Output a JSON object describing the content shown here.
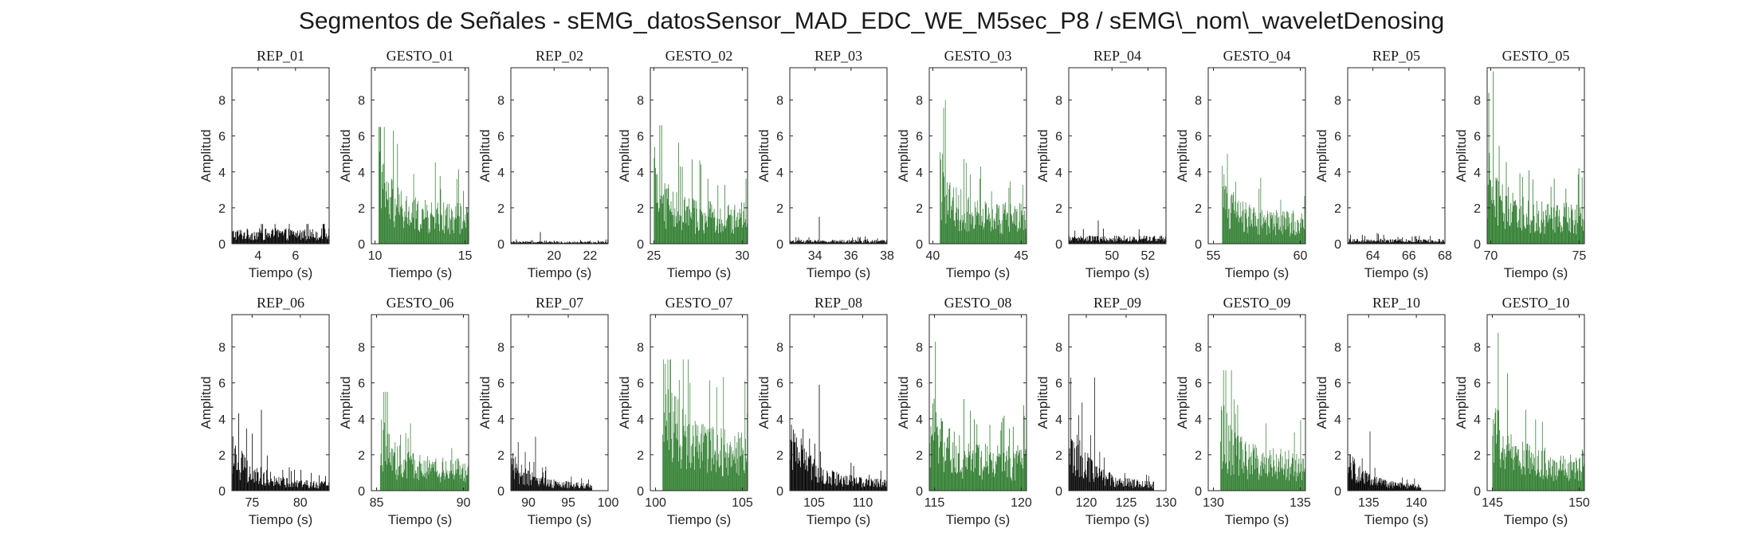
{
  "figure": {
    "title": "Segmentos de Señales - sEMG_datosSensor_MAD_EDC_WE_M5sec_P8 / sEMG\\_nom\\_waveletDenosing"
  },
  "colors": {
    "rep": "#000000",
    "gesto": "#2e7d2e",
    "axis": "#262626"
  },
  "chart_data": [
    {
      "type": "bar",
      "title": "REP_01",
      "xlabel": "Tiempo (s)",
      "ylabel": "Amplitud",
      "xlim": [
        2.6,
        7.8
      ],
      "ylim": [
        0,
        9.8
      ],
      "xticks": [
        4,
        6
      ],
      "yticks": [
        0,
        2,
        4,
        6,
        8
      ],
      "color": "rep",
      "style": "rep",
      "peak": 1.1,
      "typical": 0.75,
      "onset": 2.6,
      "end": 7.8
    },
    {
      "type": "bar",
      "title": "GESTO_01",
      "xlabel": "Tiempo (s)",
      "ylabel": "Amplitud",
      "xlim": [
        9.8,
        15.2
      ],
      "ylim": [
        0,
        9.8
      ],
      "xticks": [
        10,
        15
      ],
      "yticks": [
        0,
        2,
        4,
        6,
        8
      ],
      "color": "gesto",
      "style": "gesto",
      "peak": 6.5,
      "typical": 2.0,
      "onset": 10.2,
      "end": 15.2
    },
    {
      "type": "bar",
      "title": "REP_02",
      "xlabel": "Tiempo (s)",
      "ylabel": "Amplitud",
      "xlim": [
        17.6,
        23.0
      ],
      "ylim": [
        0,
        9.8
      ],
      "xticks": [
        20,
        22
      ],
      "yticks": [
        0,
        2,
        4,
        6,
        8
      ],
      "color": "rep",
      "style": "rep",
      "peak": 0.65,
      "typical": 0.12,
      "onset": 17.6,
      "end": 23.0
    },
    {
      "type": "bar",
      "title": "GESTO_02",
      "xlabel": "Tiempo (s)",
      "ylabel": "Amplitud",
      "xlim": [
        24.8,
        30.3
      ],
      "ylim": [
        0,
        9.8
      ],
      "xticks": [
        25,
        30
      ],
      "yticks": [
        0,
        2,
        4,
        6,
        8
      ],
      "color": "gesto",
      "style": "gesto",
      "peak": 6.6,
      "typical": 2.0,
      "onset": 25.0,
      "end": 30.3
    },
    {
      "type": "bar",
      "title": "REP_03",
      "xlabel": "Tiempo (s)",
      "ylabel": "Amplitud",
      "xlim": [
        32.6,
        38.0
      ],
      "ylim": [
        0,
        9.8
      ],
      "xticks": [
        34,
        36,
        38
      ],
      "yticks": [
        0,
        2,
        4,
        6,
        8
      ],
      "color": "rep",
      "style": "rep",
      "peak": 1.5,
      "typical": 0.2,
      "onset": 32.6,
      "end": 38.0
    },
    {
      "type": "bar",
      "title": "GESTO_03",
      "xlabel": "Tiempo (s)",
      "ylabel": "Amplitud",
      "xlim": [
        39.8,
        45.3
      ],
      "ylim": [
        0,
        9.8
      ],
      "xticks": [
        40,
        45
      ],
      "yticks": [
        0,
        2,
        4,
        6,
        8
      ],
      "color": "gesto",
      "style": "gesto",
      "peak": 8.0,
      "typical": 2.0,
      "onset": 40.4,
      "end": 45.3
    },
    {
      "type": "bar",
      "title": "REP_04",
      "xlabel": "Tiempo (s)",
      "ylabel": "Amplitud",
      "xlim": [
        47.6,
        53.0
      ],
      "ylim": [
        0,
        9.8
      ],
      "xticks": [
        50,
        52
      ],
      "yticks": [
        0,
        2,
        4,
        6,
        8
      ],
      "color": "rep",
      "style": "rep",
      "peak": 1.3,
      "typical": 0.4,
      "onset": 47.6,
      "end": 53.0
    },
    {
      "type": "bar",
      "title": "GESTO_04",
      "xlabel": "Tiempo (s)",
      "ylabel": "Amplitud",
      "xlim": [
        54.7,
        60.3
      ],
      "ylim": [
        0,
        9.8
      ],
      "xticks": [
        55,
        60
      ],
      "yticks": [
        0,
        2,
        4,
        6,
        8
      ],
      "color": "gesto",
      "style": "gesto",
      "peak": 5.0,
      "typical": 1.6,
      "onset": 55.5,
      "end": 60.3
    },
    {
      "type": "bar",
      "title": "REP_05",
      "xlabel": "Tiempo (s)",
      "ylabel": "Amplitud",
      "xlim": [
        62.6,
        68.0
      ],
      "ylim": [
        0,
        9.8
      ],
      "xticks": [
        64,
        66,
        68
      ],
      "yticks": [
        0,
        2,
        4,
        6,
        8
      ],
      "color": "rep",
      "style": "rep",
      "peak": 0.6,
      "typical": 0.25,
      "onset": 62.6,
      "end": 68.0
    },
    {
      "type": "bar",
      "title": "GESTO_05",
      "xlabel": "Tiempo (s)",
      "ylabel": "Amplitud",
      "xlim": [
        69.8,
        75.3
      ],
      "ylim": [
        0,
        9.8
      ],
      "xticks": [
        70,
        75
      ],
      "yticks": [
        0,
        2,
        4,
        6,
        8
      ],
      "color": "gesto",
      "style": "gesto",
      "peak": 9.6,
      "typical": 2.0,
      "onset": 69.8,
      "end": 75.3
    },
    {
      "type": "bar",
      "title": "REP_06",
      "xlabel": "Tiempo (s)",
      "ylabel": "Amplitud",
      "xlim": [
        72.9,
        83.0
      ],
      "ylim": [
        0,
        9.8
      ],
      "xticks": [
        75,
        80
      ],
      "yticks": [
        0,
        2,
        4,
        6,
        8
      ],
      "color": "rep",
      "style": "decay",
      "peak": 4.5,
      "typical": 0.4,
      "onset": 72.9,
      "end": 83.0
    },
    {
      "type": "bar",
      "title": "GESTO_06",
      "xlabel": "Tiempo (s)",
      "ylabel": "Amplitud",
      "xlim": [
        84.7,
        90.3
      ],
      "ylim": [
        0,
        9.8
      ],
      "xticks": [
        85,
        90
      ],
      "yticks": [
        0,
        2,
        4,
        6,
        8
      ],
      "color": "gesto",
      "style": "gesto",
      "peak": 5.5,
      "typical": 1.6,
      "onset": 85.2,
      "end": 90.3
    },
    {
      "type": "bar",
      "title": "REP_07",
      "xlabel": "Tiempo (s)",
      "ylabel": "Amplitud",
      "xlim": [
        87.8,
        100.0
      ],
      "ylim": [
        0,
        9.8
      ],
      "xticks": [
        90,
        95,
        100
      ],
      "yticks": [
        0,
        2,
        4,
        6,
        8
      ],
      "color": "rep",
      "style": "decay",
      "peak": 3.0,
      "typical": 0.35,
      "onset": 87.8,
      "end": 98.0
    },
    {
      "type": "bar",
      "title": "GESTO_07",
      "xlabel": "Tiempo (s)",
      "ylabel": "Amplitud",
      "xlim": [
        99.7,
        105.3
      ],
      "ylim": [
        0,
        9.8
      ],
      "xticks": [
        100,
        105
      ],
      "yticks": [
        0,
        2,
        4,
        6,
        8
      ],
      "color": "gesto",
      "style": "gesto",
      "peak": 7.3,
      "typical": 3.0,
      "onset": 100.4,
      "end": 105.3
    },
    {
      "type": "bar",
      "title": "REP_08",
      "xlabel": "Tiempo (s)",
      "ylabel": "Amplitud",
      "xlim": [
        102.5,
        112.5
      ],
      "ylim": [
        0,
        9.8
      ],
      "xticks": [
        105,
        110
      ],
      "yticks": [
        0,
        2,
        4,
        6,
        8
      ],
      "color": "rep",
      "style": "decay",
      "peak": 5.9,
      "typical": 0.5,
      "onset": 102.5,
      "end": 112.5
    },
    {
      "type": "bar",
      "title": "GESTO_08",
      "xlabel": "Tiempo (s)",
      "ylabel": "Amplitud",
      "xlim": [
        114.7,
        120.3
      ],
      "ylim": [
        0,
        9.8
      ],
      "xticks": [
        115,
        120
      ],
      "yticks": [
        0,
        2,
        4,
        6,
        8
      ],
      "color": "gesto",
      "style": "gesto",
      "peak": 8.3,
      "typical": 2.2,
      "onset": 114.7,
      "end": 120.3
    },
    {
      "type": "bar",
      "title": "REP_09",
      "xlabel": "Tiempo (s)",
      "ylabel": "Amplitud",
      "xlim": [
        117.8,
        130.0
      ],
      "ylim": [
        0,
        9.8
      ],
      "xticks": [
        120,
        125,
        130
      ],
      "yticks": [
        0,
        2,
        4,
        6,
        8
      ],
      "color": "rep",
      "style": "decay",
      "peak": 6.3,
      "typical": 0.4,
      "onset": 117.8,
      "end": 128.5
    },
    {
      "type": "bar",
      "title": "GESTO_09",
      "xlabel": "Tiempo (s)",
      "ylabel": "Amplitud",
      "xlim": [
        129.7,
        135.3
      ],
      "ylim": [
        0,
        9.8
      ],
      "xticks": [
        130,
        135
      ],
      "yticks": [
        0,
        2,
        4,
        6,
        8
      ],
      "color": "gesto",
      "style": "gesto",
      "peak": 6.7,
      "typical": 2.0,
      "onset": 130.4,
      "end": 135.3
    },
    {
      "type": "bar",
      "title": "REP_10",
      "xlabel": "Tiempo (s)",
      "ylabel": "Amplitud",
      "xlim": [
        132.8,
        143.0
      ],
      "ylim": [
        0,
        9.8
      ],
      "xticks": [
        135,
        140
      ],
      "yticks": [
        0,
        2,
        4,
        6,
        8
      ],
      "color": "rep",
      "style": "decay",
      "peak": 3.3,
      "typical": 0.3,
      "onset": 132.8,
      "end": 140.5
    },
    {
      "type": "bar",
      "title": "GESTO_10",
      "xlabel": "Tiempo (s)",
      "ylabel": "Amplitud",
      "xlim": [
        144.7,
        150.3
      ],
      "ylim": [
        0,
        9.8
      ],
      "xticks": [
        145,
        150
      ],
      "yticks": [
        0,
        2,
        4,
        6,
        8
      ],
      "color": "gesto",
      "style": "gesto",
      "peak": 8.8,
      "typical": 2.0,
      "onset": 145.0,
      "end": 150.3
    }
  ]
}
